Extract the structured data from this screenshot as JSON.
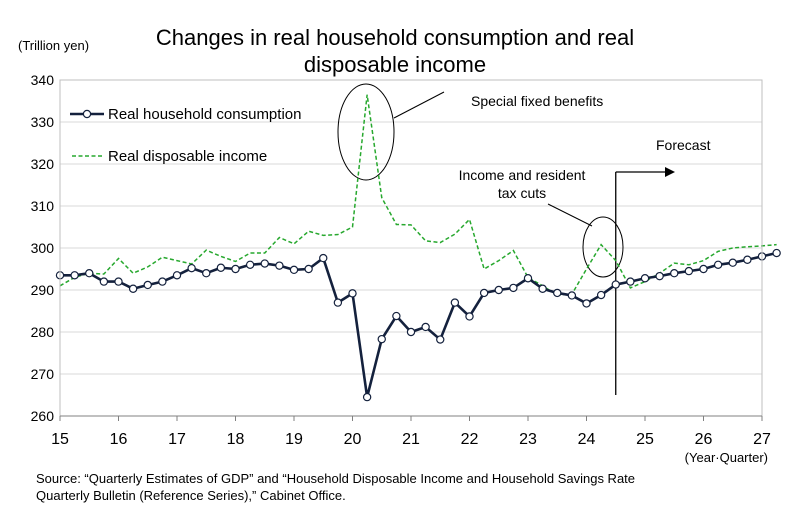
{
  "title_line1": "Changes in real household consumption and real",
  "title_line2": "disposable income",
  "source_line1": "Source: “Quarterly Estimates of GDP” and “Household Disposable Income and Household Savings Rate",
  "source_line2": "Quarterly Bulletin (Reference Series),” Cabinet Office.",
  "chart_data": {
    "type": "line",
    "title": "Changes in real household consumption and real disposable income",
    "ylabel": "(Trillion yen)",
    "xlabel": "(Year·Quarter)",
    "ylim": [
      260,
      340
    ],
    "yticks": [
      260,
      270,
      280,
      290,
      300,
      310,
      320,
      330,
      340
    ],
    "xlim": [
      15,
      27
    ],
    "xticks": [
      "15",
      "16",
      "17",
      "18",
      "19",
      "20",
      "21",
      "22",
      "23",
      "24",
      "25",
      "26",
      "27"
    ],
    "grid": true,
    "legend_position": "top-left",
    "annotations": {
      "special": "Special fixed benefits",
      "tax_line1": "Income and resident",
      "tax_line2": "tax cuts",
      "forecast": "Forecast"
    },
    "forecast_start": 24.5,
    "series": [
      {
        "name": "Real household consumption",
        "color": "#14213d",
        "style": "solid-markers",
        "x_start": 15,
        "step": 0.25,
        "values": [
          293.5,
          293.5,
          294,
          292,
          292,
          290.3,
          291.2,
          292,
          293.5,
          295.2,
          294,
          295.3,
          295,
          296,
          296.3,
          295.8,
          294.8,
          295,
          297.6,
          287,
          289.2,
          264.5,
          278.3,
          283.8,
          280,
          281.2,
          278.2,
          287,
          283.7,
          289.3,
          290,
          290.5,
          292.8,
          290.3,
          289.3,
          288.7,
          286.8,
          288.8,
          291.3,
          292,
          292.8,
          293.3,
          294,
          294.5,
          295,
          296,
          296.5,
          297.2,
          298,
          298.8
        ]
      },
      {
        "name": "Real disposable income",
        "color": "#27a82e",
        "style": "dashed",
        "x_start": 15,
        "step": 0.25,
        "values": [
          291,
          293,
          294,
          293.8,
          297.5,
          294,
          295.5,
          297.8,
          297,
          296.2,
          299.5,
          298,
          296.8,
          298.8,
          298.8,
          302.5,
          301,
          304,
          303,
          303.2,
          305,
          336.5,
          312,
          305.6,
          305.5,
          301.7,
          301.3,
          303.3,
          306.8,
          295,
          297,
          299.4,
          293,
          291,
          288.8,
          289,
          295,
          300.8,
          297,
          290.5,
          292,
          294,
          296.4,
          296,
          297,
          299.2,
          300,
          300.3,
          300.5,
          300.8
        ]
      }
    ]
  }
}
